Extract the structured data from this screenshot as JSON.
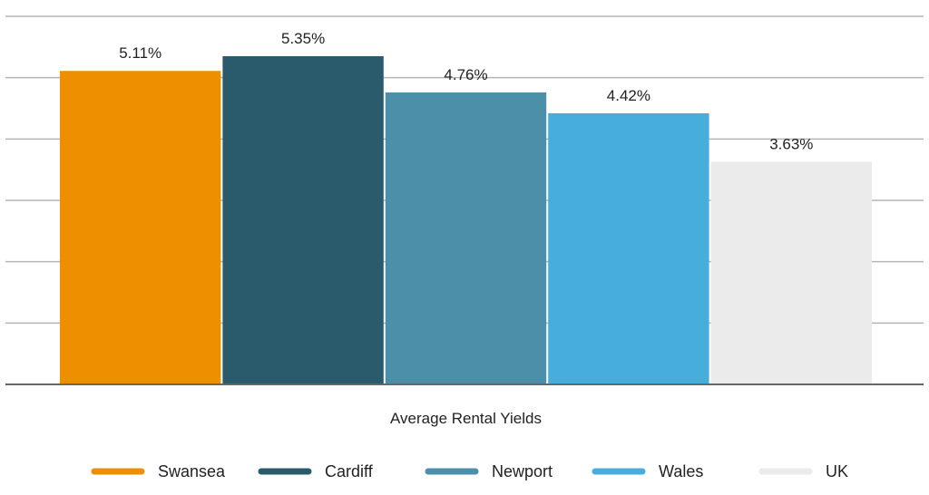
{
  "chart_data": {
    "type": "bar",
    "title": "",
    "xlabel": "",
    "ylabel": "",
    "categories": [
      "Average Rental Yields"
    ],
    "series": [
      {
        "name": "Swansea",
        "value": 5.11,
        "label": "5.11%",
        "color": "#EE8F00"
      },
      {
        "name": "Cardiff",
        "value": 5.35,
        "label": "5.35%",
        "color": "#2A5B6C"
      },
      {
        "name": "Newport",
        "value": 4.76,
        "label": "4.76%",
        "color": "#4B90A8"
      },
      {
        "name": "Wales",
        "value": 4.42,
        "label": "4.42%",
        "color": "#47AEDC"
      },
      {
        "name": "UK",
        "value": 3.63,
        "label": "3.63%",
        "color": "#EBEBEB"
      }
    ],
    "ylim": [
      0,
      6
    ],
    "ytick_step": 1,
    "grid": true,
    "legend_position": "bottom",
    "gridline_color": "#B5B5B5",
    "axis_color": "#666666"
  }
}
